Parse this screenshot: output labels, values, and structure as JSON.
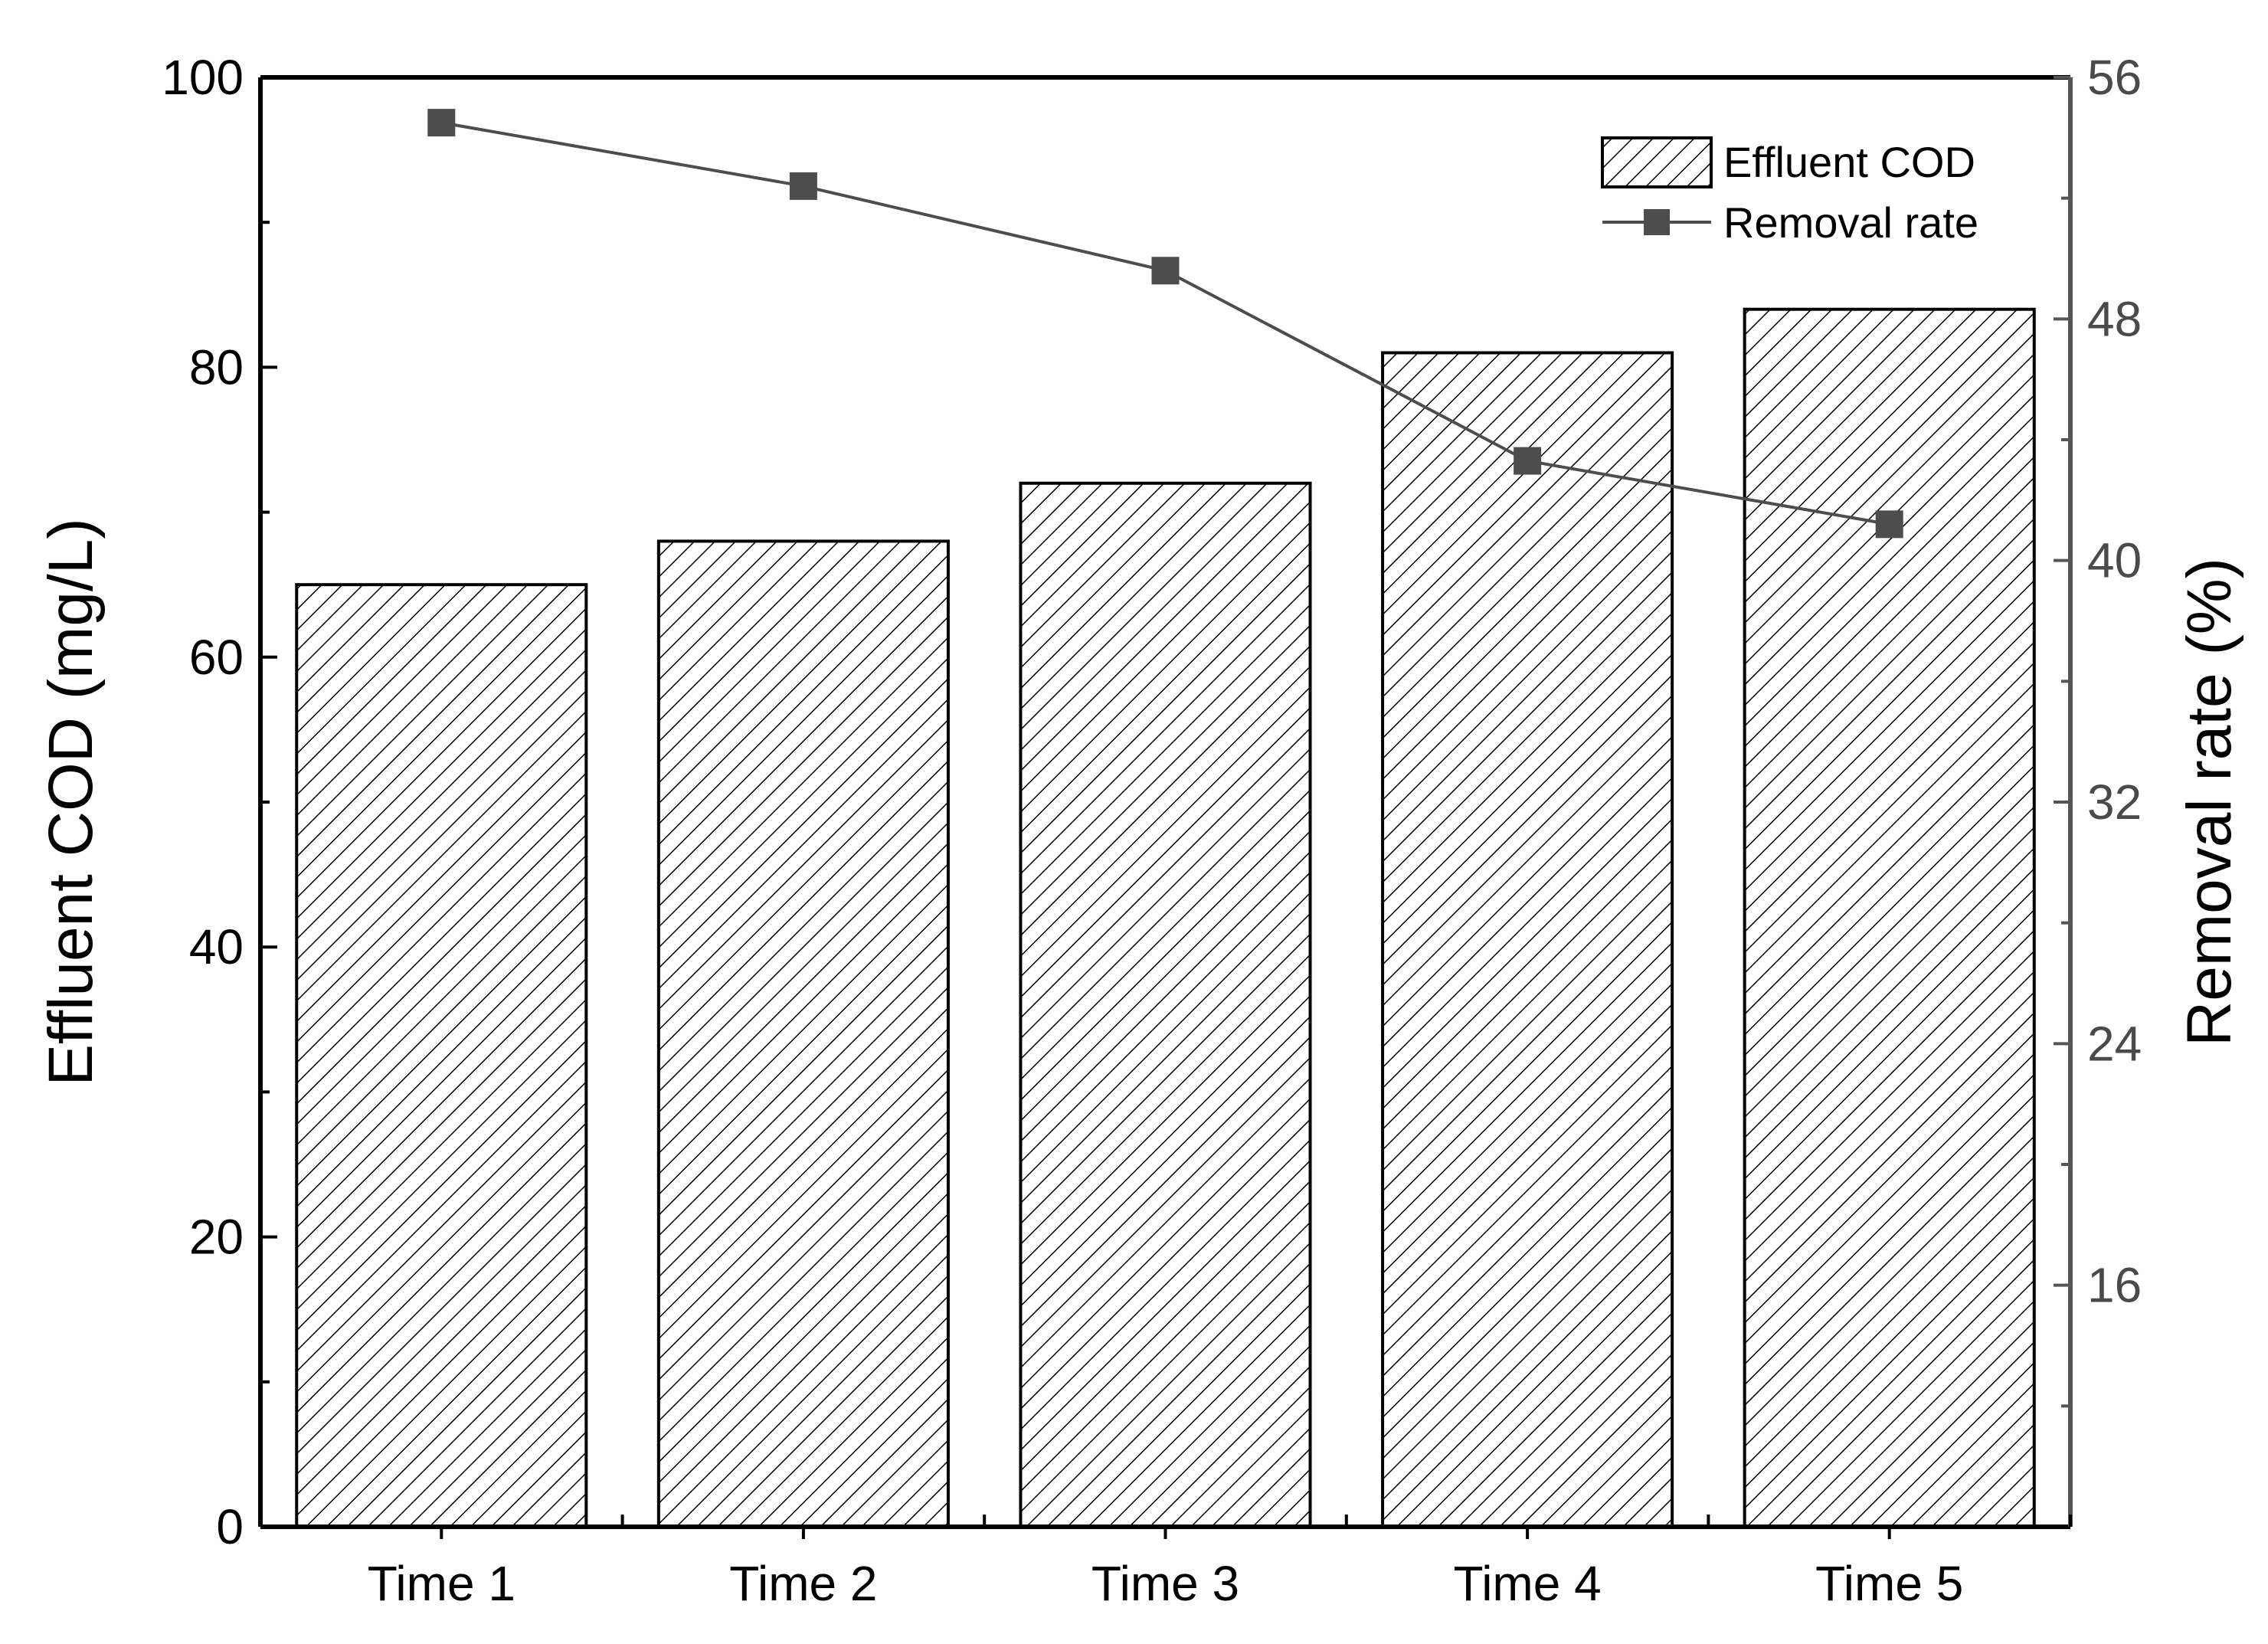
{
  "chart_data": {
    "type": "bar",
    "categories": [
      "Time 1",
      "Time 2",
      "Time 3",
      "Time 4",
      "Time 5"
    ],
    "series": [
      {
        "name": "Effluent COD",
        "type": "bar",
        "axis": "left",
        "values": [
          65,
          68,
          72,
          81,
          84
        ]
      },
      {
        "name": "Removal rate",
        "type": "line",
        "axis": "right",
        "values": [
          54.5,
          52.4,
          49.6,
          43.3,
          41.2
        ]
      }
    ],
    "ylabel": "Effluent COD (mg/L)",
    "y2label": "Removal rate (%)",
    "ylim": [
      0,
      100
    ],
    "y2lim": [
      8,
      56
    ],
    "yticks": [
      0,
      20,
      40,
      60,
      80,
      100
    ],
    "y2ticks": [
      16,
      24,
      32,
      40,
      48,
      56
    ],
    "legend": {
      "placement": "top-right",
      "entries": [
        "Effluent COD",
        "Removal rate"
      ]
    },
    "grid": false,
    "colors": {
      "bar_fill": "#ffffff",
      "bar_hatch": "#000000",
      "line": "#4d4d4d",
      "marker": "#4d4d4d",
      "right_axis": "#595959"
    }
  }
}
